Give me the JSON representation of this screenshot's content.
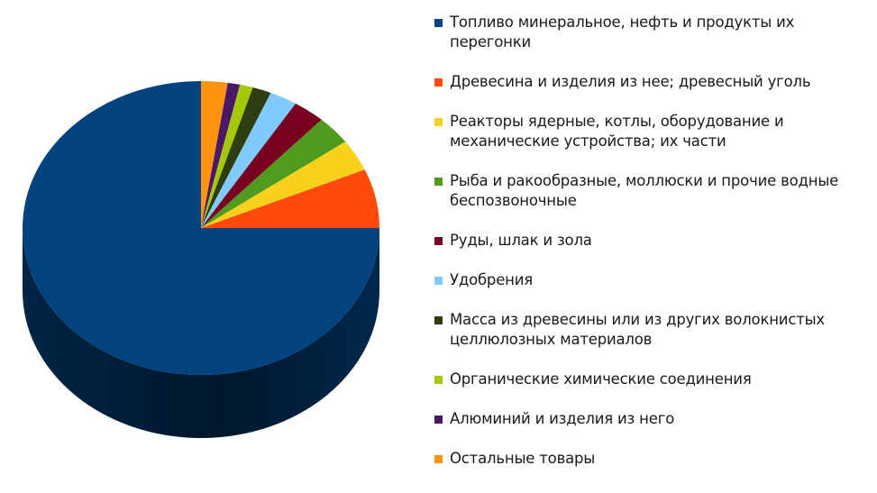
{
  "chart_data": {
    "type": "pie",
    "style": "3d",
    "legend_position": "right",
    "slices": [
      {
        "label": "Топливо минеральное, нефть и продукты их перегонки",
        "value": 75.0,
        "color": "#00437e"
      },
      {
        "label": "Древесина и изделия из нее; древесный уголь",
        "value": 6.5,
        "color": "#ff4a0c"
      },
      {
        "label": "Реакторы ядерные, котлы, оборудование и механические устройства; их части",
        "value": 3.5,
        "color": "#f9d01a"
      },
      {
        "label": "Рыба и ракообразные, моллюски и прочие водные беспозвоночные",
        "value": 3.2,
        "color": "#4e9b1f"
      },
      {
        "label": "Руды, шлак и зола",
        "value": 2.9,
        "color": "#7a0021"
      },
      {
        "label": "Удобрения",
        "value": 2.5,
        "color": "#7fcbfd"
      },
      {
        "label": "Масса из древесины или из других волокнистых целлюлозных материалов",
        "value": 1.7,
        "color": "#2e3e10"
      },
      {
        "label": "Органические химические соединения",
        "value": 1.2,
        "color": "#a4c80a"
      },
      {
        "label": "Алюминий и изделия из него",
        "value": 1.1,
        "color": "#4b1767"
      },
      {
        "label": "Остальные товары",
        "value": 2.4,
        "color": "#ff9310"
      }
    ]
  }
}
